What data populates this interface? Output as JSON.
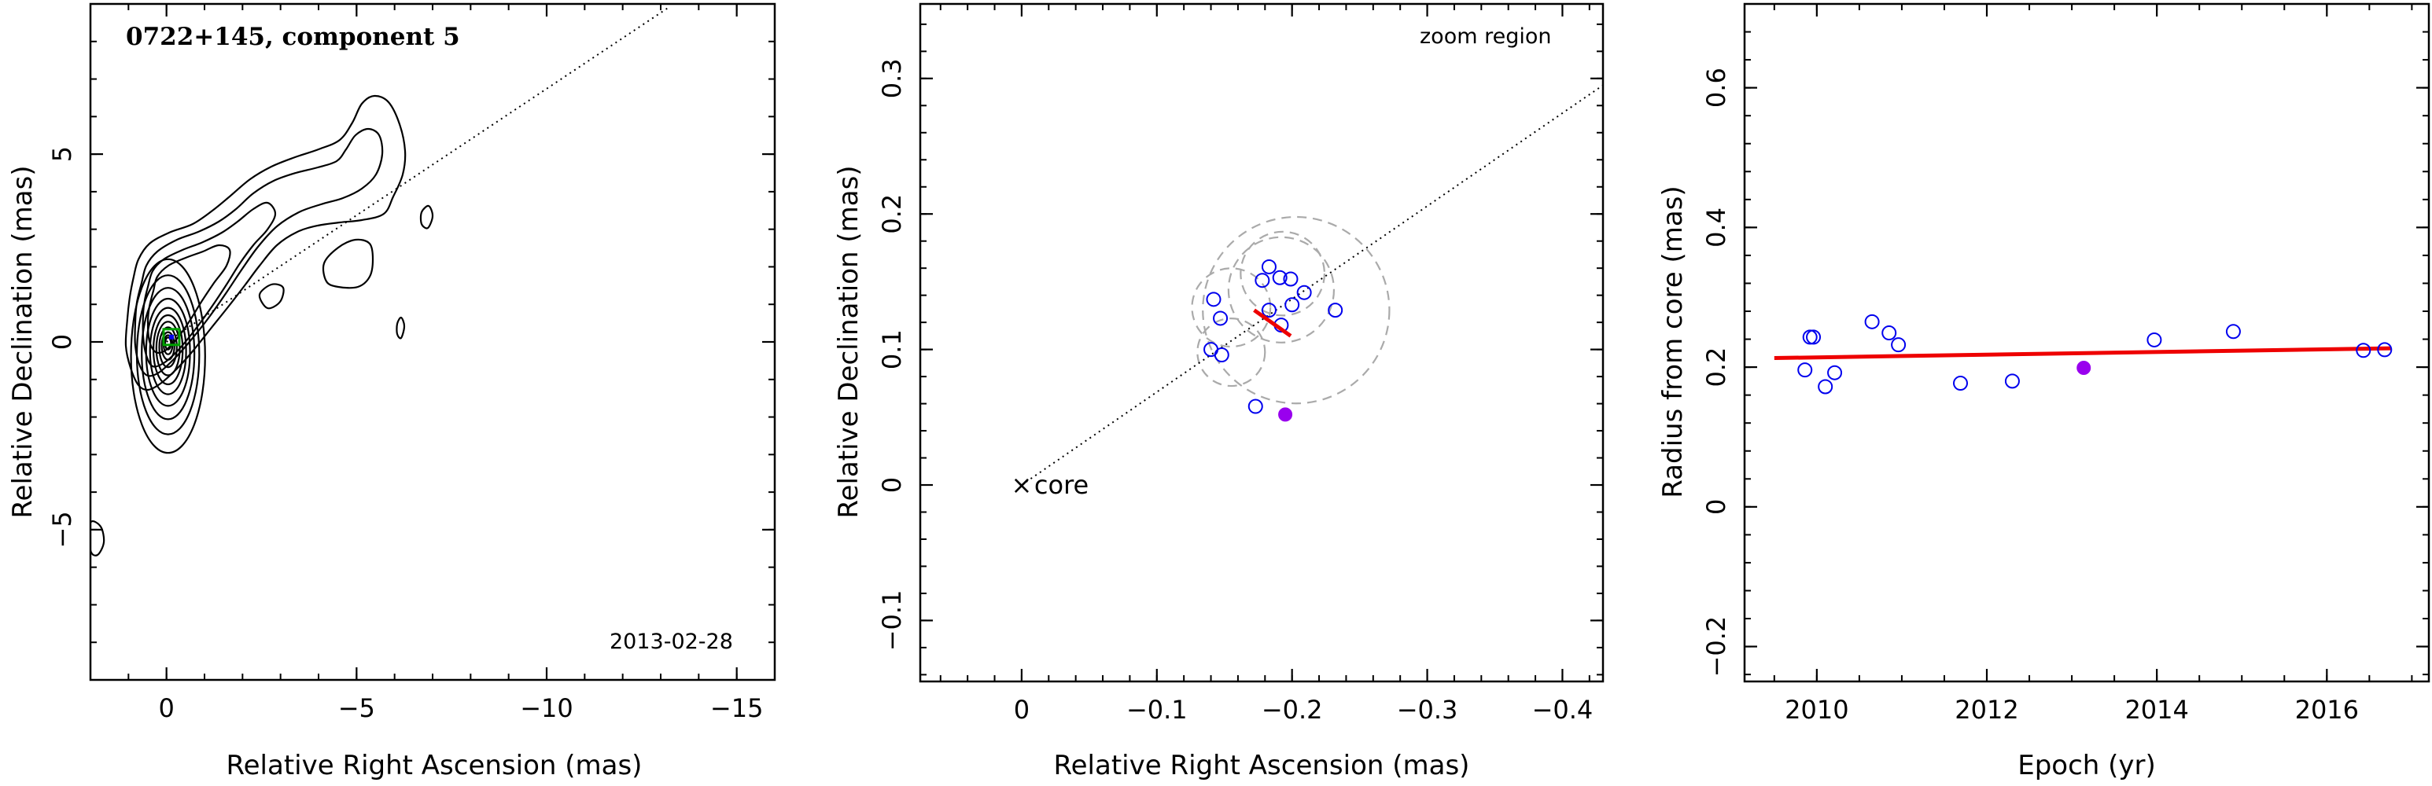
{
  "chart_data": [
    {
      "id": "map",
      "type": "contour",
      "title": "0722+145, component 5",
      "date_label": "2013-02-28",
      "xlabel": "Relative Right Ascension (mas)",
      "ylabel": "Relative Declination (mas)",
      "xlim": [
        2,
        -16
      ],
      "ylim": [
        -9,
        9
      ],
      "xticks": [
        0,
        -5,
        -10,
        -15
      ],
      "xtick_labels": [
        "0",
        "−5",
        "−10",
        "−15"
      ],
      "yticks": [
        -5,
        0,
        5
      ],
      "ytick_labels": [
        "−5",
        "0",
        "5"
      ],
      "jet_line": {
        "from": [
          0,
          0
        ],
        "to": [
          -13.2,
          8.9
        ]
      },
      "component_marker": {
        "x": -0.13,
        "y": 0.13
      }
    },
    {
      "id": "zoom",
      "type": "scatter",
      "annotation_top": "zoom region",
      "annotation_core": "core",
      "core_marker": "×",
      "xlabel": "Relative Right Ascension (mas)",
      "ylabel": "Relative Declination (mas)",
      "xlim": [
        0.075,
        -0.43
      ],
      "ylim": [
        -0.145,
        0.355
      ],
      "xticks": [
        0,
        -0.1,
        -0.2,
        -0.3,
        -0.4
      ],
      "xtick_labels": [
        "0",
        "−0.1",
        "−0.2",
        "−0.3",
        "−0.4"
      ],
      "yticks": [
        -0.1,
        0,
        0.1,
        0.2,
        0.3
      ],
      "ytick_labels": [
        "−0.1",
        "0",
        "0.1",
        "0.2",
        "0.3"
      ],
      "jet_line": {
        "from": [
          0,
          0
        ],
        "to": [
          -0.43,
          0.295
        ]
      },
      "points_open": [
        [
          -0.142,
          0.137
        ],
        [
          -0.147,
          0.123
        ],
        [
          -0.14,
          0.1
        ],
        [
          -0.148,
          0.096
        ],
        [
          -0.178,
          0.151
        ],
        [
          -0.183,
          0.161
        ],
        [
          -0.191,
          0.153
        ],
        [
          -0.199,
          0.152
        ],
        [
          -0.183,
          0.129
        ],
        [
          -0.192,
          0.118
        ],
        [
          -0.2,
          0.133
        ],
        [
          -0.209,
          0.142
        ],
        [
          -0.232,
          0.129
        ],
        [
          -0.173,
          0.058
        ]
      ],
      "point_filled": [
        -0.195,
        0.052
      ],
      "fit_segment": [
        [
          -0.172,
          0.129
        ],
        [
          -0.199,
          0.11
        ]
      ],
      "error_circles": [
        {
          "cx": -0.203,
          "cy": 0.129,
          "r": 0.069
        },
        {
          "cx": -0.193,
          "cy": 0.156,
          "r": 0.031
        },
        {
          "cx": -0.192,
          "cy": 0.144,
          "r": 0.039
        },
        {
          "cx": -0.155,
          "cy": 0.098,
          "r": 0.025
        },
        {
          "cx": -0.155,
          "cy": 0.131,
          "r": 0.029
        }
      ],
      "colors": {
        "open": "#0000ee",
        "filled": "#9900ee",
        "fit": "#ee0000",
        "circles": "#aaaaaa"
      }
    },
    {
      "id": "radius",
      "type": "scatter",
      "xlabel": "Epoch (yr)",
      "ylabel": "Radius from core (mas)",
      "xlim": [
        2009.15,
        2017.2
      ],
      "ylim": [
        -0.25,
        0.72
      ],
      "xticks": [
        2010,
        2012,
        2014,
        2016
      ],
      "xtick_labels": [
        "2010",
        "2012",
        "2014",
        "2016"
      ],
      "yticks": [
        -0.2,
        0,
        0.2,
        0.4,
        0.6
      ],
      "ytick_labels": [
        "−0.2",
        "0",
        "0.2",
        "0.4",
        "0.6"
      ],
      "points_open": [
        [
          2009.86,
          0.196
        ],
        [
          2009.92,
          0.243
        ],
        [
          2009.96,
          0.243
        ],
        [
          2010.1,
          0.172
        ],
        [
          2010.21,
          0.192
        ],
        [
          2010.65,
          0.265
        ],
        [
          2010.85,
          0.249
        ],
        [
          2010.96,
          0.232
        ],
        [
          2011.69,
          0.177
        ],
        [
          2012.3,
          0.18
        ],
        [
          2013.97,
          0.239
        ],
        [
          2014.9,
          0.251
        ],
        [
          2016.43,
          0.224
        ],
        [
          2016.68,
          0.225
        ]
      ],
      "point_filled": [
        2013.14,
        0.199
      ],
      "fit_line": [
        [
          2009.5,
          0.213
        ],
        [
          2016.76,
          0.227
        ]
      ],
      "colors": {
        "open": "#0000ee",
        "filled": "#9900ee",
        "fit": "#ee0000"
      }
    }
  ]
}
